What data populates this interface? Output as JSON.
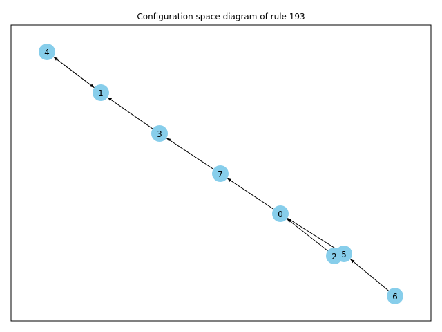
{
  "figure": {
    "title": "Configuration space diagram of rule 193"
  },
  "graph": {
    "node_color": "#87ceeb",
    "edge_color": "#000000",
    "nodes": [
      "4",
      "1",
      "3",
      "7",
      "0",
      "2",
      "5",
      "6"
    ],
    "edges": [
      {
        "from": "4",
        "to": "1"
      },
      {
        "from": "1",
        "to": "4"
      },
      {
        "from": "3",
        "to": "1"
      },
      {
        "from": "7",
        "to": "3"
      },
      {
        "from": "0",
        "to": "7"
      },
      {
        "from": "2",
        "to": "0"
      },
      {
        "from": "5",
        "to": "0"
      },
      {
        "from": "6",
        "to": "5"
      }
    ]
  }
}
